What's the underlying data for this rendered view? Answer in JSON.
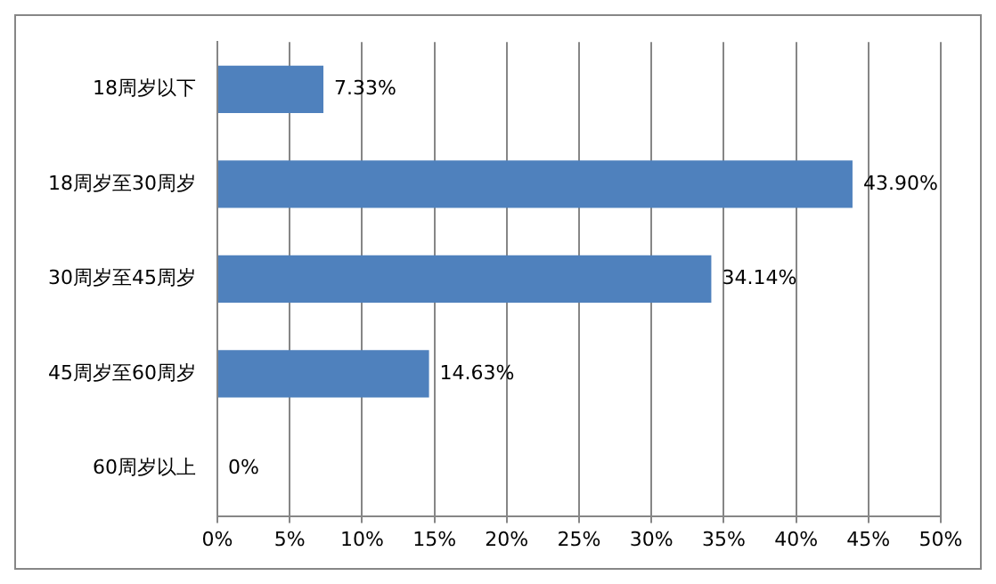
{
  "chart_data": {
    "type": "bar",
    "orientation": "horizontal",
    "categories": [
      "18周岁以下",
      "18周岁至30周岁",
      "30周岁至45周岁",
      "45周岁至60周岁",
      "60周岁以上"
    ],
    "values": [
      7.33,
      43.9,
      34.14,
      14.63,
      0
    ],
    "value_labels": [
      "7.33%",
      "43.90%",
      "34.14%",
      "14.63%",
      "0%"
    ],
    "color": "#4f81bd",
    "xlim": [
      0,
      50
    ],
    "xticks": [
      {
        "value": 0,
        "label": "0%"
      },
      {
        "value": 5,
        "label": "5%"
      },
      {
        "value": 10,
        "label": "10%"
      },
      {
        "value": 15,
        "label": "15%"
      },
      {
        "value": 20,
        "label": "20%"
      },
      {
        "value": 25,
        "label": "25%"
      },
      {
        "value": 30,
        "label": "30%"
      },
      {
        "value": 35,
        "label": "35%"
      },
      {
        "value": 40,
        "label": "40%"
      },
      {
        "value": 45,
        "label": "45%"
      },
      {
        "value": 50,
        "label": "50%"
      }
    ],
    "grid": "x",
    "legend": false
  }
}
